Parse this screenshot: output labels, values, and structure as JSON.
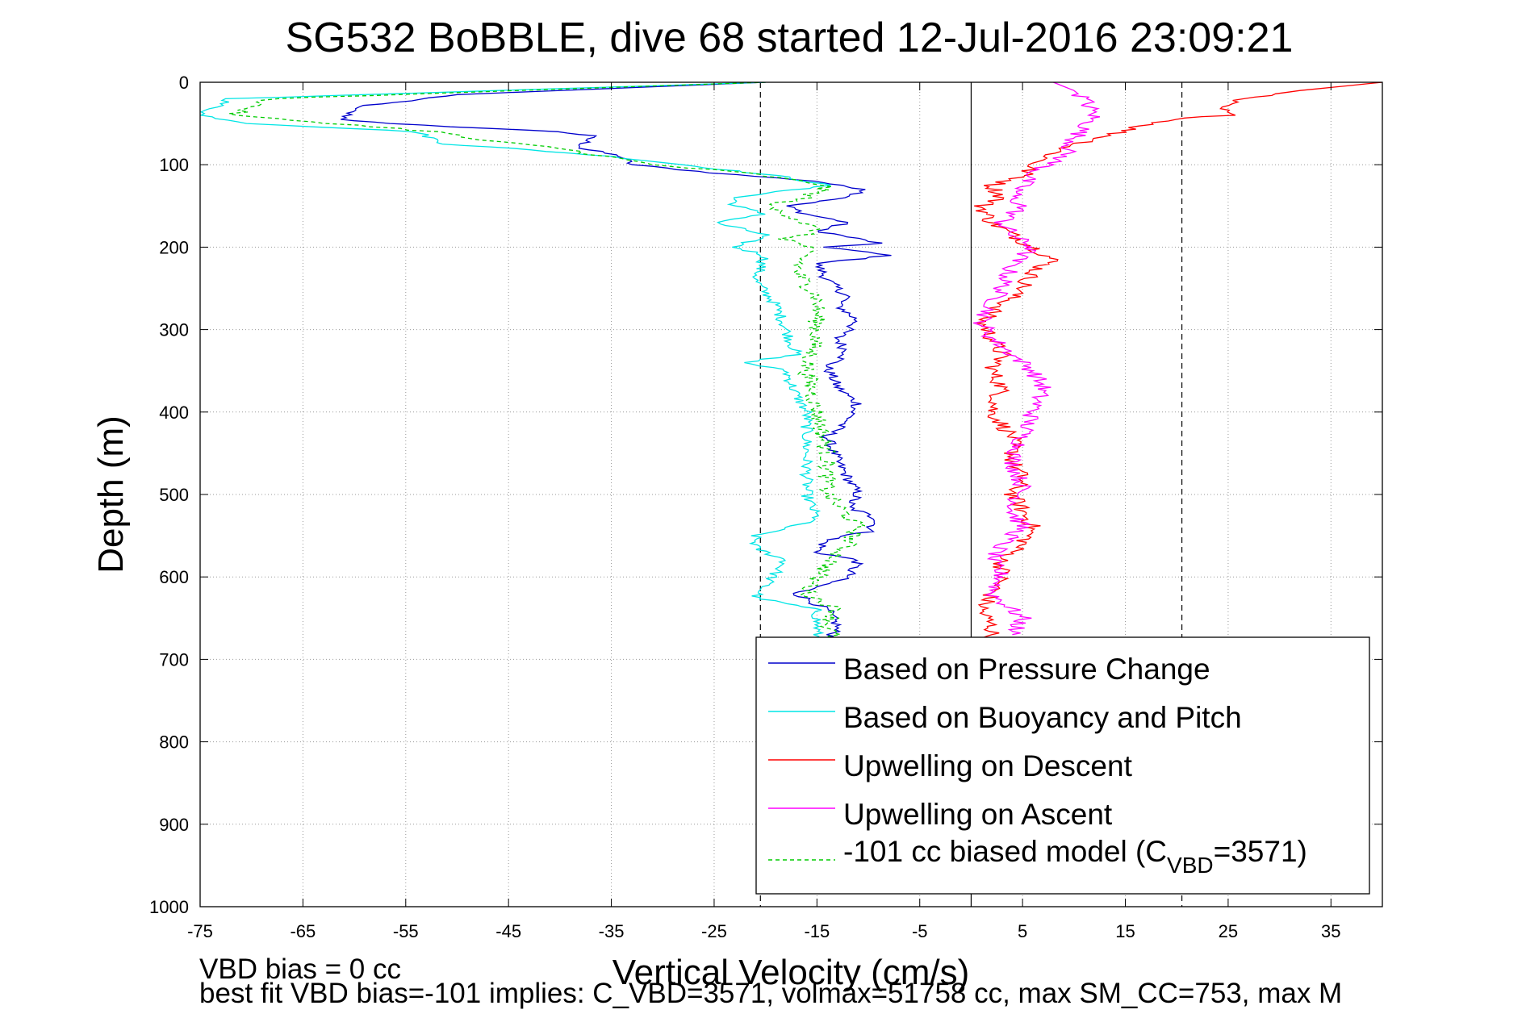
{
  "chart_data": {
    "type": "line",
    "title": "SG532 BoBBLE, dive 68 started 12-Jul-2016 23:09:21",
    "xlabel": "Vertical Velocity (cm/s)",
    "ylabel": "Depth (m)",
    "xlim": [
      -75,
      40
    ],
    "ylim": [
      0,
      1000
    ],
    "y_reversed": true,
    "grid": true,
    "legend_position": "bottom-right",
    "x_ticks": [
      -75,
      -65,
      -55,
      -45,
      -35,
      -25,
      -15,
      -5,
      5,
      15,
      25,
      35
    ],
    "y_ticks": [
      0,
      100,
      200,
      300,
      400,
      500,
      600,
      700,
      800,
      900,
      1000
    ],
    "x_tick_labels": [
      "-75",
      "-65",
      "-55",
      "-45",
      "-35",
      "-25",
      "-15",
      "-5",
      "5",
      "15",
      "25",
      "35"
    ],
    "y_tick_labels": [
      "0",
      "100",
      "200",
      "300",
      "400",
      "500",
      "600",
      "700",
      "800",
      "900",
      "1000"
    ],
    "reference_lines": [
      {
        "x": -20.5,
        "style": "dashed"
      },
      {
        "x": 0,
        "style": "solid"
      },
      {
        "x": 20.5,
        "style": "dashed"
      }
    ],
    "series": [
      {
        "name": "Based on Pressure Change",
        "color": "#0000cc",
        "dash": "solid",
        "points": [
          [
            -20,
            0
          ],
          [
            -50,
            15
          ],
          [
            -60,
            30
          ],
          [
            -61,
            45
          ],
          [
            -57,
            50
          ],
          [
            -40,
            60
          ],
          [
            -37,
            65
          ],
          [
            -38,
            80
          ],
          [
            -34,
            90
          ],
          [
            -33,
            100
          ],
          [
            -25,
            110
          ],
          [
            -15,
            120
          ],
          [
            -13,
            125
          ],
          [
            -10,
            130
          ],
          [
            -12,
            140
          ],
          [
            -18,
            150
          ],
          [
            -16,
            160
          ],
          [
            -12,
            170
          ],
          [
            -15,
            180
          ],
          [
            -9,
            195
          ],
          [
            -14,
            200
          ],
          [
            -8,
            210
          ],
          [
            -15,
            220
          ],
          [
            -14,
            240
          ],
          [
            -12,
            260
          ],
          [
            -13,
            270
          ],
          [
            -11,
            290
          ],
          [
            -13,
            310
          ],
          [
            -12,
            330
          ],
          [
            -14,
            345
          ],
          [
            -13,
            370
          ],
          [
            -11,
            390
          ],
          [
            -12,
            410
          ],
          [
            -14,
            430
          ],
          [
            -13,
            460
          ],
          [
            -12,
            480
          ],
          [
            -11,
            500
          ],
          [
            -12,
            515
          ],
          [
            -9,
            530
          ],
          [
            -10,
            545
          ],
          [
            -14,
            555
          ],
          [
            -15,
            570
          ],
          [
            -11,
            580
          ],
          [
            -12,
            600
          ],
          [
            -17,
            620
          ],
          [
            -14,
            640
          ],
          [
            -13,
            660
          ],
          [
            -14,
            680
          ],
          [
            -13,
            700
          ]
        ]
      },
      {
        "name": "Based on Buoyancy and Pitch",
        "color": "#00e5e5",
        "dash": "solid",
        "points": [
          [
            -20,
            0
          ],
          [
            -72,
            20
          ],
          [
            -75,
            40
          ],
          [
            -70,
            50
          ],
          [
            -54,
            60
          ],
          [
            -51,
            75
          ],
          [
            -45,
            80
          ],
          [
            -35,
            90
          ],
          [
            -28,
            100
          ],
          [
            -18,
            115
          ],
          [
            -14,
            125
          ],
          [
            -23,
            140
          ],
          [
            -23,
            150
          ],
          [
            -20,
            160
          ],
          [
            -25,
            170
          ],
          [
            -20,
            185
          ],
          [
            -23,
            200
          ],
          [
            -20,
            210
          ],
          [
            -21,
            240
          ],
          [
            -19,
            270
          ],
          [
            -18,
            300
          ],
          [
            -17,
            330
          ],
          [
            -22,
            340
          ],
          [
            -18,
            350
          ],
          [
            -17,
            380
          ],
          [
            -16,
            400
          ],
          [
            -16,
            450
          ],
          [
            -16,
            500
          ],
          [
            -15,
            530
          ],
          [
            -21,
            550
          ],
          [
            -21,
            565
          ],
          [
            -18,
            580
          ],
          [
            -20,
            610
          ],
          [
            -21,
            625
          ],
          [
            -15,
            640
          ],
          [
            -15,
            660
          ],
          [
            -15,
            680
          ]
        ]
      },
      {
        "name": "Upwelling on Descent",
        "color": "#ff0000",
        "dash": "solid",
        "points": [
          [
            40,
            0
          ],
          [
            32,
            10
          ],
          [
            26,
            20
          ],
          [
            24,
            30
          ],
          [
            25,
            40
          ],
          [
            20,
            45
          ],
          [
            16,
            55
          ],
          [
            12,
            70
          ],
          [
            9,
            80
          ],
          [
            6,
            100
          ],
          [
            5,
            115
          ],
          [
            2,
            125
          ],
          [
            3,
            140
          ],
          [
            1,
            150
          ],
          [
            2,
            170
          ],
          [
            4,
            185
          ],
          [
            6,
            200
          ],
          [
            8,
            215
          ],
          [
            6,
            230
          ],
          [
            5,
            250
          ],
          [
            3,
            270
          ],
          [
            1,
            290
          ],
          [
            2,
            310
          ],
          [
            3,
            330
          ],
          [
            2,
            350
          ],
          [
            3,
            370
          ],
          [
            2,
            400
          ],
          [
            4,
            430
          ],
          [
            4,
            460
          ],
          [
            5,
            480
          ],
          [
            4,
            500
          ],
          [
            5,
            520
          ],
          [
            6,
            540
          ],
          [
            5,
            560
          ],
          [
            3,
            580
          ],
          [
            3,
            600
          ],
          [
            2,
            620
          ],
          [
            1,
            640
          ],
          [
            2,
            660
          ],
          [
            2,
            680
          ]
        ]
      },
      {
        "name": "Upwelling on Ascent",
        "color": "#ff00ff",
        "dash": "solid",
        "points": [
          [
            8,
            0
          ],
          [
            10,
            10
          ],
          [
            11,
            20
          ],
          [
            12,
            40
          ],
          [
            11,
            55
          ],
          [
            10,
            70
          ],
          [
            9,
            90
          ],
          [
            6,
            110
          ],
          [
            5,
            125
          ],
          [
            4,
            140
          ],
          [
            5,
            150
          ],
          [
            3,
            170
          ],
          [
            4,
            185
          ],
          [
            6,
            200
          ],
          [
            4,
            220
          ],
          [
            3,
            250
          ],
          [
            2,
            270
          ],
          [
            1,
            290
          ],
          [
            2,
            310
          ],
          [
            4,
            330
          ],
          [
            6,
            350
          ],
          [
            7,
            370
          ],
          [
            6,
            400
          ],
          [
            5,
            430
          ],
          [
            4,
            460
          ],
          [
            5,
            490
          ],
          [
            4,
            520
          ],
          [
            5,
            540
          ],
          [
            3,
            560
          ],
          [
            2,
            580
          ],
          [
            3,
            600
          ],
          [
            2,
            620
          ],
          [
            5,
            650
          ],
          [
            4,
            670
          ]
        ]
      },
      {
        "name": "-101 cc biased model (C_VBD=3571)",
        "color": "#00cc00",
        "dash": "dashed",
        "points": [
          [
            -20,
            0
          ],
          [
            -68,
            20
          ],
          [
            -72,
            40
          ],
          [
            -62,
            50
          ],
          [
            -52,
            60
          ],
          [
            -48,
            70
          ],
          [
            -40,
            80
          ],
          [
            -31,
            100
          ],
          [
            -22,
            110
          ],
          [
            -14,
            125
          ],
          [
            -16,
            140
          ],
          [
            -20,
            150
          ],
          [
            -17,
            165
          ],
          [
            -15,
            180
          ],
          [
            -18,
            190
          ],
          [
            -16,
            200
          ],
          [
            -17,
            230
          ],
          [
            -15,
            260
          ],
          [
            -15,
            300
          ],
          [
            -16,
            350
          ],
          [
            -15,
            400
          ],
          [
            -14,
            450
          ],
          [
            -14,
            500
          ],
          [
            -11,
            540
          ],
          [
            -12,
            560
          ],
          [
            -15,
            600
          ],
          [
            -16,
            620
          ],
          [
            -13,
            640
          ],
          [
            -14,
            660
          ],
          [
            -13,
            680
          ]
        ]
      }
    ]
  },
  "footer": {
    "line1": "VBD bias = 0 cc",
    "line2": "best fit VBD bias=-101 implies: C_VBD=3571, volmax=51758 cc, max SM_CC=753, max M"
  },
  "legend": {
    "items": [
      {
        "label": "Based on Pressure Change",
        "color": "#0000cc",
        "dash": "solid"
      },
      {
        "label": "Based on Buoyancy and Pitch",
        "color": "#00e5e5",
        "dash": "solid"
      },
      {
        "label": "Upwelling on Descent",
        "color": "#ff0000",
        "dash": "solid"
      },
      {
        "label": "Upwelling on Ascent",
        "color": "#ff00ff",
        "dash": "solid"
      },
      {
        "label_prefix": "-101 cc biased model (C",
        "label_sub": "VBD",
        "label_suffix": "=3571)",
        "color": "#00cc00",
        "dash": "dashed"
      }
    ]
  }
}
